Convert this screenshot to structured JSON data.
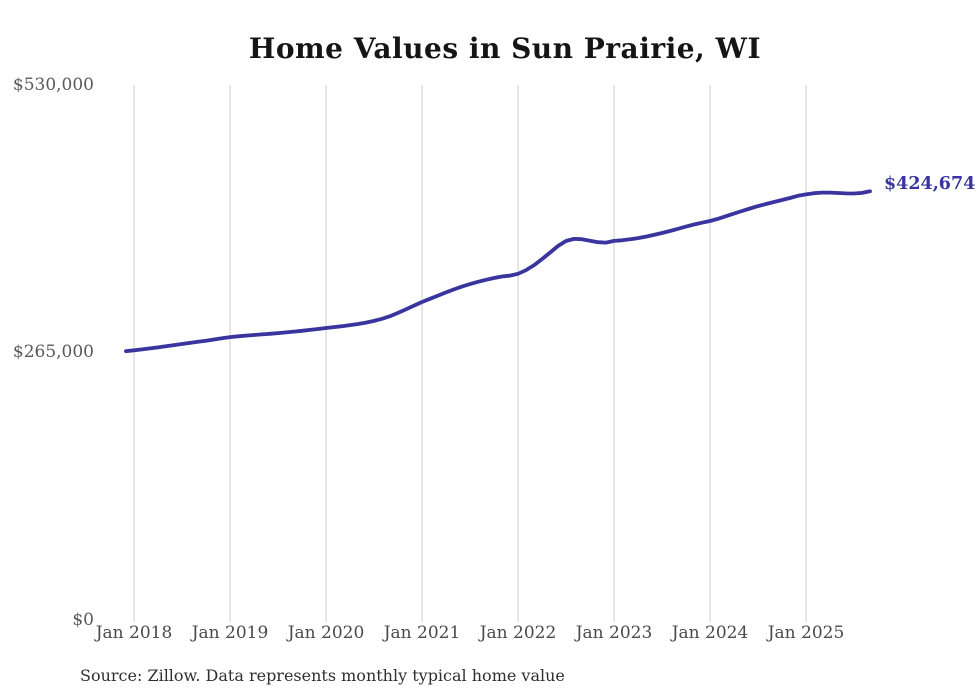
{
  "chart_data": {
    "type": "line",
    "title": "Home Values in Sun Prairie, WI",
    "series_name": "Typical home value (monthly)",
    "x_ticks": [
      "Jan 2018",
      "Jan 2019",
      "Jan 2020",
      "Jan 2021",
      "Jan 2022",
      "Jan 2023",
      "Jan 2024",
      "Jan 2025"
    ],
    "y_ticks": [
      "$0",
      "$265,000",
      "$530,000"
    ],
    "ylim": [
      0,
      530000
    ],
    "start_month": "Dec 2017",
    "start_offset": -1,
    "grid": "vertical-only",
    "legend": "none",
    "end_label": "$424,674",
    "end_value": 424674,
    "line_color": "#39349e",
    "grid_color": "#cccccc",
    "values": [
      266300,
      267200,
      268100,
      269100,
      270100,
      271200,
      272300,
      273400,
      274500,
      275600,
      276700,
      277900,
      279100,
      280300,
      281000,
      281700,
      282300,
      282900,
      283500,
      284200,
      284900,
      285700,
      286500,
      287400,
      288300,
      289300,
      290200,
      291100,
      292100,
      293200,
      294600,
      296300,
      298400,
      301000,
      304200,
      307800,
      311500,
      315000,
      318200,
      321400,
      324500,
      327500,
      330300,
      332800,
      335000,
      337000,
      338800,
      340300,
      341200,
      343000,
      346500,
      351500,
      357500,
      364000,
      370500,
      375500,
      377500,
      377200,
      375800,
      374300,
      373900,
      375600,
      376200,
      377100,
      378300,
      379800,
      381500,
      383400,
      385400,
      387500,
      389700,
      391800,
      393600,
      395300,
      397500,
      400000,
      402600,
      405200,
      407700,
      410000,
      412100,
      414100,
      416100,
      418100,
      420200,
      421600,
      422800,
      423400,
      423400,
      423000,
      422600,
      422500,
      423100,
      424674
    ]
  },
  "source_note": "Source: Zillow. Data represents monthly typical home value"
}
